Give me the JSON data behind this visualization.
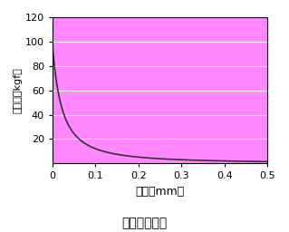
{
  "title": "隙間と吸着力",
  "xlabel": "隙間（mm）",
  "ylabel": "吸着力（kgf）",
  "xlim": [
    0,
    0.5
  ],
  "ylim": [
    0,
    120
  ],
  "xticks": [
    0,
    0.1,
    0.2,
    0.3,
    0.4,
    0.5
  ],
  "xtick_labels": [
    "0",
    "0.1",
    "0.2",
    "0.3",
    "0.4",
    "0.5"
  ],
  "yticks": [
    20,
    40,
    60,
    80,
    100,
    120
  ],
  "ytick_labels": [
    "20",
    "40",
    "60",
    "80",
    "100",
    "120"
  ],
  "bg_color": "#FF88FF",
  "line_color": "#333333",
  "curve_k": 0.48,
  "curve_power": 2.0,
  "curve_scale": 120.0
}
